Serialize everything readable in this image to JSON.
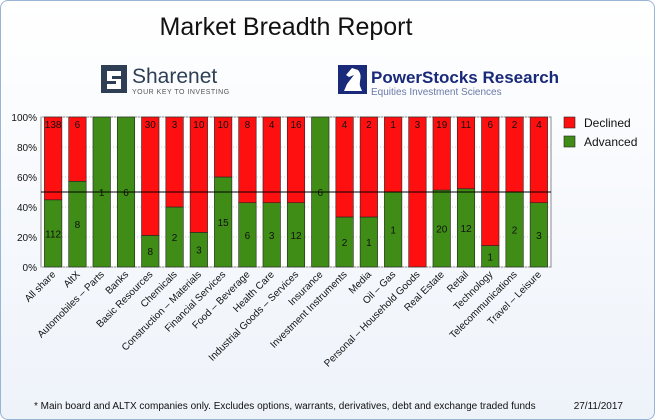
{
  "header": {
    "title": "Market Breadth Report"
  },
  "logos": {
    "left_name": "Sharenet",
    "left_tagline": "YOUR KEY TO INVESTING",
    "right_name": "PowerStocks  Research",
    "right_tagline": "Equities Investment Sciences"
  },
  "chart_data": {
    "type": "bar",
    "stacked": "percent",
    "categories": [
      "All share",
      "AltX",
      "Automobiles – Parts",
      "Banks",
      "Basic Resources",
      "Chemicals",
      "Construction – Materials",
      "Financial Services",
      "Food – Beverage",
      "Health Care",
      "Industrial Goods – Services",
      "Insurance",
      "Investment Instruments",
      "Media",
      "Oil – Gas",
      "Personal – Household Goods",
      "Real Estate",
      "Retail",
      "Technology",
      "Telecommunications",
      "Travel – Leisure"
    ],
    "series": [
      {
        "name": "Advanced",
        "color": "#3f8c17",
        "values": [
          112,
          8,
          1,
          6,
          8,
          2,
          3,
          15,
          6,
          3,
          12,
          6,
          2,
          1,
          1,
          0,
          20,
          12,
          1,
          2,
          3
        ]
      },
      {
        "name": "Declined",
        "color": "#ff1010",
        "values": [
          138,
          6,
          0,
          0,
          30,
          3,
          10,
          10,
          8,
          4,
          16,
          0,
          4,
          2,
          1,
          3,
          19,
          11,
          6,
          2,
          4
        ]
      }
    ],
    "ylim": [
      0,
      100
    ],
    "yticks": [
      {
        "value": 0,
        "label": "0%"
      },
      {
        "value": 20,
        "label": "20%"
      },
      {
        "value": 40,
        "label": "40%"
      },
      {
        "value": 60,
        "label": "60%"
      },
      {
        "value": 80,
        "label": "80%"
      },
      {
        "value": 100,
        "label": "100%"
      }
    ],
    "reference_line": 50,
    "grid": true,
    "legend": "right"
  },
  "footer": {
    "note": "* Main board and ALTX companies only. Excludes options, warrants, derivatives, debt and exchange traded funds",
    "date": "27/11/2017"
  }
}
